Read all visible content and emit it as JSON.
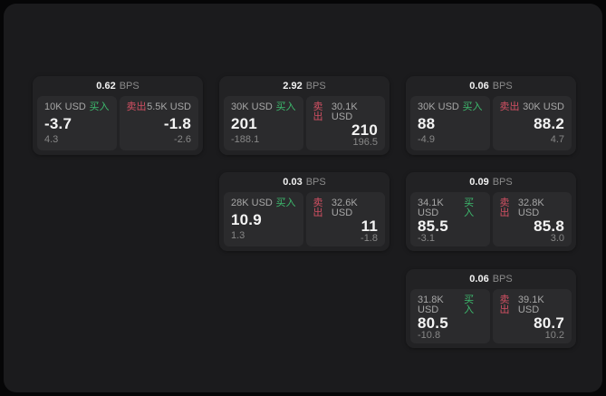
{
  "window": {
    "bps_unit": "BPS",
    "buy_label": "买入",
    "sell_label": "卖出"
  },
  "colors": {
    "backdrop": "#060607",
    "panel": "#1b1b1d",
    "card": "#222224",
    "pane": "#2b2b2d",
    "buy_accent": "#3dbb6e",
    "sell_accent": "#d25063"
  },
  "cards": [
    {
      "bps": "0.62",
      "buy": {
        "amount": "10K USD",
        "value": "-3.7",
        "change": "4.3"
      },
      "sell": {
        "amount": "5.5K USD",
        "value": "-1.8",
        "change": "-2.6"
      }
    },
    {
      "bps": "2.92",
      "buy": {
        "amount": "30K USD",
        "value": "201",
        "change": "-188.1"
      },
      "sell": {
        "amount": "30.1K USD",
        "value": "210",
        "change": "196.5"
      }
    },
    {
      "bps": "0.06",
      "buy": {
        "amount": "30K USD",
        "value": "88",
        "change": "-4.9"
      },
      "sell": {
        "amount": "30K USD",
        "value": "88.2",
        "change": "4.7"
      }
    },
    {
      "bps": "0.03",
      "buy": {
        "amount": "28K USD",
        "value": "10.9",
        "change": "1.3"
      },
      "sell": {
        "amount": "32.6K USD",
        "value": "11",
        "change": "-1.8"
      }
    },
    {
      "bps": "0.09",
      "buy": {
        "amount": "34.1K USD",
        "value": "85.5",
        "change": "-3.1"
      },
      "sell": {
        "amount": "32.8K USD",
        "value": "85.8",
        "change": "3.0"
      }
    },
    {
      "bps": "0.06",
      "buy": {
        "amount": "31.8K USD",
        "value": "80.5",
        "change": "-10.8"
      },
      "sell": {
        "amount": "39.1K USD",
        "value": "80.7",
        "change": "10.2"
      }
    }
  ]
}
